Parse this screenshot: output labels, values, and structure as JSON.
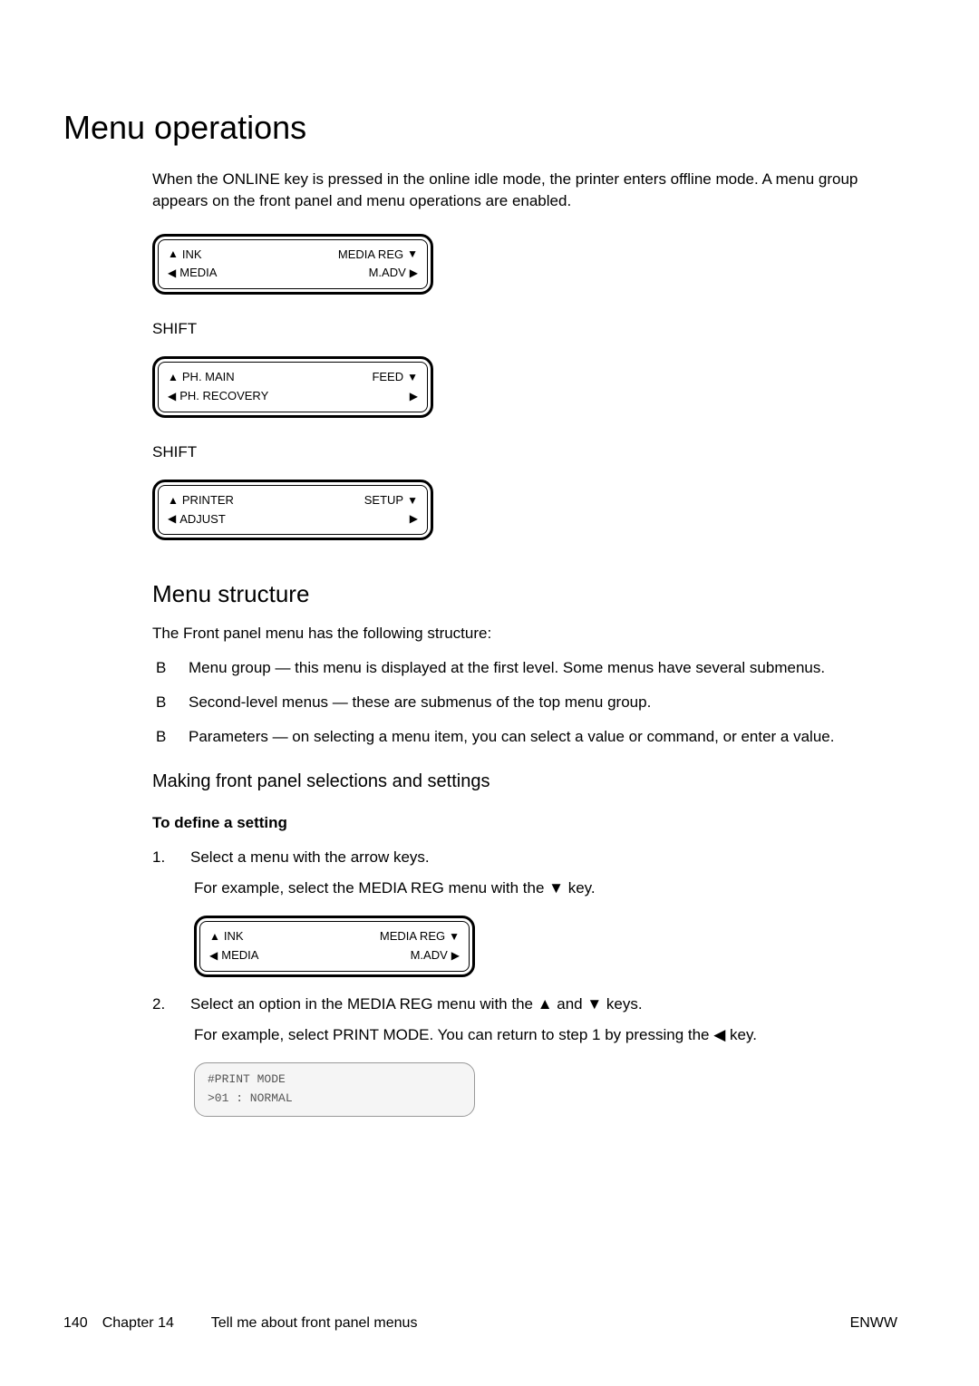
{
  "title": "Menu operations",
  "intro": "When the ONLINE key is pressed in the online idle mode, the printer enters offline mode. A menu group appears on the front panel and menu operations are enabled.",
  "panels": {
    "p1": {
      "row1_left": "INK",
      "row1_right": "MEDIA REG",
      "row2_left": "MEDIA",
      "row2_right": "M.ADV"
    },
    "p2": {
      "row1_left": "PH. MAIN",
      "row1_right": "FEED",
      "row2_left": "PH. RECOVERY",
      "row2_right": ""
    },
    "p3": {
      "row1_left": "PRINTER",
      "row1_right": "SETUP",
      "row2_left": "ADJUST",
      "row2_right": ""
    },
    "p4": {
      "row1_left": "INK",
      "row1_right": "MEDIA REG",
      "row2_left": "MEDIA",
      "row2_right": "M.ADV"
    },
    "p5": {
      "line1": "#PRINT MODE",
      "line2": ">01 : NORMAL"
    }
  },
  "shift_label": "SHIFT",
  "menu_structure": {
    "heading": "Menu structure",
    "intro": "The Front panel menu has the following structure:",
    "bullets": [
      "Menu group — this menu is displayed at the first level. Some menus have several submenus.",
      "Second-level menus — these are submenus of the top menu group.",
      "Parameters — on selecting a menu item, you can select a value or command, or enter a value."
    ]
  },
  "selections": {
    "heading": "Making front panel selections and settings",
    "sub_heading": "To define a setting",
    "steps": [
      {
        "num": "1.",
        "text": "Select a menu with the arrow keys.",
        "example": "For example, select the MEDIA REG menu with the ▼ key."
      },
      {
        "num": "2.",
        "text": "Select an option in the MEDIA REG menu with the ▲ and ▼ keys.",
        "example": "For example, select PRINT MODE. You can return to step 1 by pressing the ◀ key."
      }
    ]
  },
  "footer": {
    "page_num": "140",
    "chapter": "Chapter 14",
    "chapter_title": "Tell me about front panel menus",
    "right": "ENWW"
  },
  "arrows": {
    "up": "▲",
    "down": "▼",
    "left": "◀",
    "right": "▶"
  },
  "bullet_marker": "B"
}
